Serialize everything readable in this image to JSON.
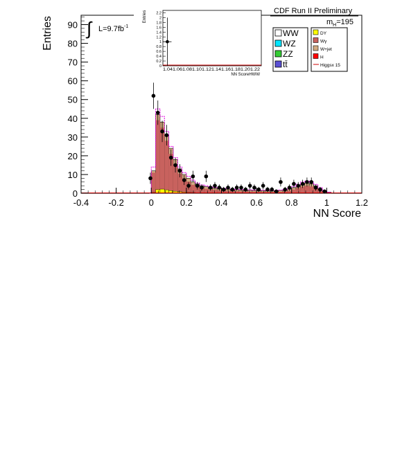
{
  "chart_data": [
    {
      "type": "bar",
      "title": "CDF Run II Preliminary",
      "xlabel": "NN Score",
      "ylabel": "Entries",
      "xlim": [
        -0.4,
        1.2
      ],
      "ylim": [
        0,
        95
      ],
      "x_ticks": [
        "-0.4",
        "-0.2",
        "0",
        "0.2",
        "0.4",
        "0.6",
        "0.8",
        "1",
        "1.2"
      ],
      "y_ticks": [
        "0",
        "10",
        "20",
        "30",
        "40",
        "50",
        "60",
        "70",
        "80",
        "90"
      ],
      "lumi_label": "L=9.7fb",
      "lumi_sup": "-1",
      "mass_label": "m",
      "mass_sub": "H",
      "mass_value": "=195",
      "bin_edges": [
        -0.01,
        0.0,
        0.025,
        0.05,
        0.075,
        0.1,
        0.125,
        0.15,
        0.175,
        0.2,
        0.225,
        0.25,
        0.275,
        0.3,
        0.325,
        0.35,
        0.375,
        0.4,
        0.425,
        0.45,
        0.475,
        0.5,
        0.525,
        0.55,
        0.575,
        0.6,
        0.625,
        0.65,
        0.675,
        0.7,
        0.725,
        0.75,
        0.775,
        0.8,
        0.825,
        0.85,
        0.875,
        0.9,
        0.925,
        0.95,
        0.975,
        1.0,
        1.025
      ],
      "background_total": [
        0,
        12,
        42,
        38,
        31,
        24,
        18,
        13,
        10,
        8,
        6,
        5,
        4,
        3.5,
        3,
        2.8,
        2.6,
        2.4,
        2.2,
        2.0,
        1.9,
        1.8,
        1.7,
        1.6,
        1.5,
        1.5,
        1.4,
        1.4,
        1.3,
        1.3,
        1.5,
        1.8,
        2.2,
        3.0,
        4.0,
        5.0,
        5.5,
        5.0,
        4.0,
        2.5,
        1.0,
        0.5
      ],
      "wgamma": [
        0,
        11,
        39,
        35,
        28,
        21,
        15,
        10.5,
        8,
        6.2,
        4.5,
        3.6,
        2.8,
        2.4,
        2.0,
        1.8,
        1.6,
        1.5,
        1.3,
        1.2,
        1.1,
        1.0,
        1.0,
        0.9,
        0.9,
        0.8,
        0.8,
        0.8,
        0.7,
        0.7,
        0.8,
        1.0,
        1.4,
        2.0,
        2.8,
        3.6,
        4.0,
        3.6,
        2.8,
        1.6,
        0.6,
        0.3
      ],
      "dy": [
        0,
        0.5,
        2.0,
        2.2,
        1.8,
        1.4,
        1.0,
        0.8,
        0.6,
        0.5,
        0.4,
        0.3,
        0.3,
        0.3,
        0.3,
        0.2,
        0.2,
        0.2,
        0.2,
        0.2,
        0.2,
        0.2,
        0.2,
        0.2,
        0.2,
        0.2,
        0.2,
        0.2,
        0.2,
        0.2,
        0.2,
        0.2,
        0.2,
        0.2,
        0.2,
        0.2,
        0.2,
        0.2,
        0.2,
        0.1,
        0.1,
        0.0
      ],
      "signal_total": [
        0,
        14,
        45,
        41,
        33,
        25,
        19,
        14,
        11,
        9,
        7,
        5.5,
        4.5,
        4,
        3.4,
        3.1,
        2.9,
        2.6,
        2.4,
        2.2,
        2.1,
        2.0,
        1.9,
        1.8,
        1.7,
        1.7,
        1.6,
        1.6,
        1.5,
        1.5,
        1.7,
        2.1,
        2.6,
        3.6,
        4.8,
        6.0,
        6.5,
        6.0,
        4.7,
        3.0,
        1.3,
        0.6
      ],
      "data_points": [
        {
          "x": -0.005,
          "y": 8,
          "err": 3
        },
        {
          "x": 0.0125,
          "y": 52,
          "err": 7
        },
        {
          "x": 0.0375,
          "y": 43,
          "err": 6.5
        },
        {
          "x": 0.0625,
          "y": 33,
          "err": 5.7
        },
        {
          "x": 0.0875,
          "y": 31,
          "err": 5.5
        },
        {
          "x": 0.1125,
          "y": 19,
          "err": 4.4
        },
        {
          "x": 0.1375,
          "y": 15,
          "err": 3.9
        },
        {
          "x": 0.1625,
          "y": 12,
          "err": 3.5
        },
        {
          "x": 0.1875,
          "y": 7,
          "err": 2.6
        },
        {
          "x": 0.2125,
          "y": 4,
          "err": 2
        },
        {
          "x": 0.2375,
          "y": 9,
          "err": 3
        },
        {
          "x": 0.2625,
          "y": 4,
          "err": 2
        },
        {
          "x": 0.2875,
          "y": 3,
          "err": 1.7
        },
        {
          "x": 0.3125,
          "y": 9,
          "err": 3
        },
        {
          "x": 0.3375,
          "y": 3,
          "err": 1.7
        },
        {
          "x": 0.3625,
          "y": 4,
          "err": 2
        },
        {
          "x": 0.3875,
          "y": 3,
          "err": 1.7
        },
        {
          "x": 0.4125,
          "y": 2,
          "err": 1.4
        },
        {
          "x": 0.4375,
          "y": 3,
          "err": 1.7
        },
        {
          "x": 0.4625,
          "y": 2,
          "err": 1.4
        },
        {
          "x": 0.4875,
          "y": 3,
          "err": 1.7
        },
        {
          "x": 0.5125,
          "y": 3,
          "err": 1.7
        },
        {
          "x": 0.5375,
          "y": 2,
          "err": 1.4
        },
        {
          "x": 0.5625,
          "y": 4,
          "err": 2
        },
        {
          "x": 0.5875,
          "y": 3,
          "err": 1.7
        },
        {
          "x": 0.6125,
          "y": 2,
          "err": 1.4
        },
        {
          "x": 0.6375,
          "y": 4,
          "err": 2
        },
        {
          "x": 0.6625,
          "y": 2,
          "err": 1.4
        },
        {
          "x": 0.6875,
          "y": 2,
          "err": 1.4
        },
        {
          "x": 0.7125,
          "y": 1,
          "err": 1
        },
        {
          "x": 0.7375,
          "y": 6,
          "err": 2.4
        },
        {
          "x": 0.7625,
          "y": 2,
          "err": 1.4
        },
        {
          "x": 0.7875,
          "y": 3,
          "err": 1.7
        },
        {
          "x": 0.8125,
          "y": 5,
          "err": 2.2
        },
        {
          "x": 0.8375,
          "y": 4,
          "err": 2
        },
        {
          "x": 0.8625,
          "y": 5,
          "err": 2.2
        },
        {
          "x": 0.8875,
          "y": 6,
          "err": 2.4
        },
        {
          "x": 0.9125,
          "y": 6,
          "err": 2.4
        },
        {
          "x": 0.9375,
          "y": 3,
          "err": 1.7
        },
        {
          "x": 0.9625,
          "y": 2,
          "err": 1.4
        },
        {
          "x": 0.9875,
          "y": 1,
          "err": 1
        }
      ],
      "colors": {
        "wgamma": "#c8625e",
        "wjet": "#d2ab82",
        "dy": "#ffff00",
        "higgs": "#cc0000",
        "hatch": "#e000e0",
        "data": "#000000"
      },
      "legend": {
        "placement": "top-right",
        "col1": [
          {
            "label": "WW",
            "color": "#ffffff"
          },
          {
            "label": "WZ",
            "color": "#00e5ff"
          },
          {
            "label": "ZZ",
            "color": "#33cc33"
          },
          {
            "label": "tt̄",
            "color": "#5a4fd4"
          }
        ],
        "col2": [
          {
            "label": "DY",
            "color": "#ffff00"
          },
          {
            "label": "Wγ",
            "color": "#c8625e"
          },
          {
            "label": "W+jet",
            "color": "#d2ab82"
          },
          {
            "label": "H",
            "color": "#ff0000"
          },
          {
            "label": "Higgsx 15",
            "color": "#cc0000",
            "line": true
          }
        ]
      }
    },
    {
      "type": "bar",
      "title": "",
      "xlabel": "NN ScoreHWW",
      "ylabel": "Entries",
      "xlim": [
        1.0,
        1.22
      ],
      "ylim": [
        0,
        2.3
      ],
      "x_ticks_text": "1.041.061.081.101.121.141.161.181.201.22",
      "y_ticks": [
        "0",
        "0.2",
        "0.4",
        "0.6",
        "0.8",
        "1",
        "1.2",
        "1.4",
        "1.6",
        "1.8",
        "2",
        "2.2"
      ],
      "data_points": [
        {
          "x": 1.01,
          "y": 1,
          "err": 1
        }
      ]
    }
  ]
}
